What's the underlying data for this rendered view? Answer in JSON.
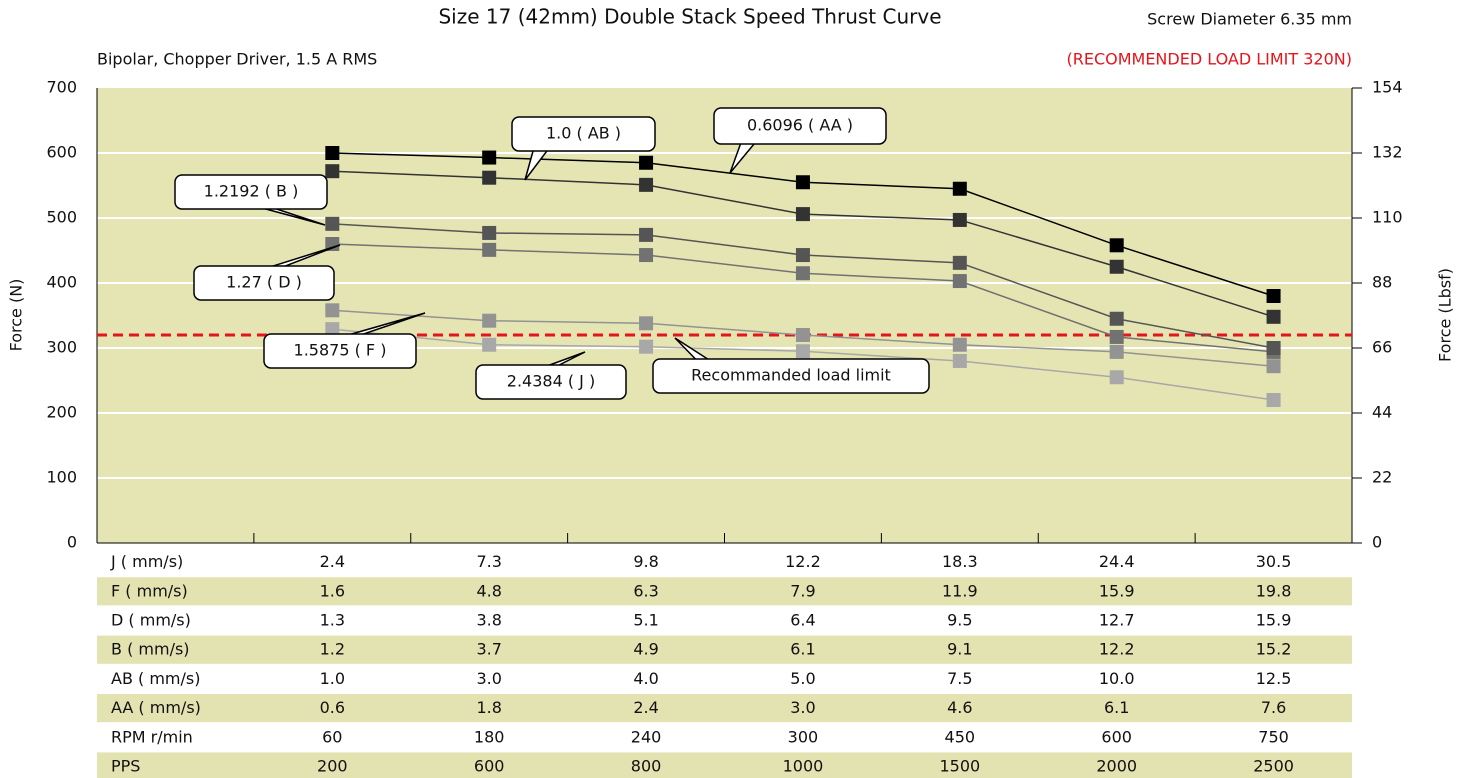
{
  "chart_data": {
    "type": "line",
    "title": "Size 17 (42mm) Double Stack Speed Thrust Curve",
    "subtitle": "Bipolar, Chopper Driver, 1.5 A RMS",
    "screw": "Screw Diameter 6.35 mm",
    "limit_note": "(RECOMMENDED LOAD LIMIT 320N)",
    "ylabel": "Force (N)",
    "y2label": "Force (Lbsf)",
    "ylim": [
      0,
      700
    ],
    "yticks": [
      0,
      100,
      200,
      300,
      400,
      500,
      600,
      700
    ],
    "y2lim": [
      0,
      154
    ],
    "y2ticks": [
      0,
      22,
      44,
      66,
      88,
      110,
      132,
      154
    ],
    "grid": true,
    "background": "#e5e5b4",
    "limit": {
      "value": 320,
      "label": "Recommanded load limit",
      "color": "#e8141b"
    },
    "series": [
      {
        "name": "0.6096 ( AA )",
        "color": "#000000",
        "values": [
          600,
          593,
          585,
          555,
          545,
          458,
          380
        ]
      },
      {
        "name": "1.0 ( AB )",
        "color": "#333333",
        "values": [
          572,
          562,
          551,
          506,
          497,
          425,
          348
        ]
      },
      {
        "name": "1.2192 ( B )",
        "color": "#555555",
        "values": [
          491,
          477,
          474,
          443,
          431,
          345,
          300
        ]
      },
      {
        "name": "1.27 ( D )",
        "color": "#727272",
        "values": [
          460,
          451,
          443,
          415,
          403,
          317,
          294
        ]
      },
      {
        "name": "1.5875 ( F )",
        "color": "#939393",
        "values": [
          358,
          342,
          338,
          320,
          305,
          294,
          272
        ]
      },
      {
        "name": "2.4384 ( J )",
        "color": "#a8a8a8",
        "values": [
          329,
          305,
          302,
          295,
          280,
          255,
          220
        ]
      }
    ]
  },
  "table": {
    "rows": [
      [
        "J ( mm/s)",
        "2.4",
        "7.3",
        "9.8",
        "12.2",
        "18.3",
        "24.4",
        "30.5"
      ],
      [
        "F ( mm/s)",
        "1.6",
        "4.8",
        "6.3",
        "7.9",
        "11.9",
        "15.9",
        "19.8"
      ],
      [
        "D ( mm/s)",
        "1.3",
        "3.8",
        "5.1",
        "6.4",
        "9.5",
        "12.7",
        "15.9"
      ],
      [
        "B ( mm/s)",
        "1.2",
        "3.7",
        "4.9",
        "6.1",
        "9.1",
        "12.2",
        "15.2"
      ],
      [
        "AB ( mm/s)",
        "1.0",
        "3.0",
        "4.0",
        "5.0",
        "7.5",
        "10.0",
        "12.5"
      ],
      [
        "AA ( mm/s)",
        "0.6",
        "1.8",
        "2.4",
        "3.0",
        "4.6",
        "6.1",
        "7.6"
      ],
      [
        "RPM r/min",
        "60",
        "180",
        "240",
        "300",
        "450",
        "600",
        "750"
      ],
      [
        "PPS",
        "200",
        "600",
        "800",
        "1000",
        "1500",
        "2000",
        "2500"
      ]
    ]
  }
}
